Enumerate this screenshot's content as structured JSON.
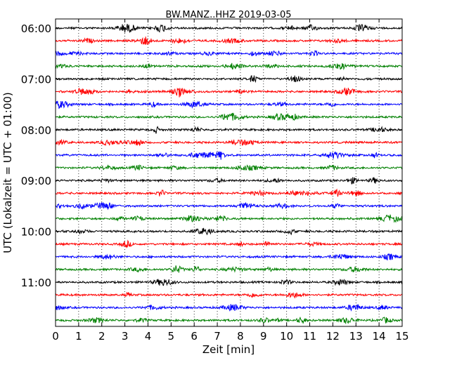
{
  "chart_data": {
    "type": "line",
    "title": "BW.MANZ..HHZ 2019-03-05",
    "xlabel": "Zeit  [min]",
    "ylabel": "UTC (Lokalzeit = UTC + 01:00)",
    "xlim": [
      0,
      15
    ],
    "x_ticks": [
      "0",
      "1",
      "2",
      "3",
      "4",
      "5",
      "6",
      "7",
      "8",
      "9",
      "10",
      "11",
      "12",
      "13",
      "14",
      "15"
    ],
    "y_ticks": [
      "06:00",
      "07:00",
      "08:00",
      "09:00",
      "10:00",
      "11:00"
    ],
    "traces_per_hour": 4,
    "trace_count": 24,
    "trace_colors": [
      "#000000",
      "#ff0000",
      "#0000ff",
      "#008000"
    ],
    "vertical_grid": "dotted",
    "legend": "none"
  }
}
